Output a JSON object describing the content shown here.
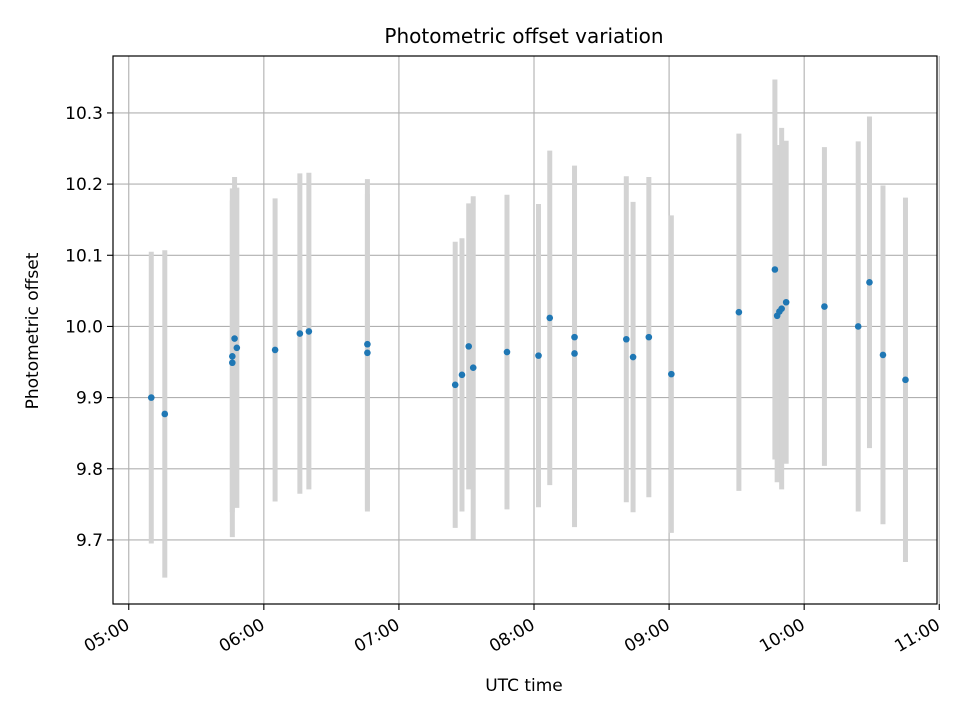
{
  "chart_data": {
    "type": "scatter",
    "title": "Photometric offset variation",
    "xlabel": "UTC time",
    "ylabel": "Photometric offset",
    "x_axis_kind": "time",
    "xlim": [
      "04:53",
      "10:59"
    ],
    "ylim": [
      9.61,
      10.38
    ],
    "x_ticks": [
      "05:00",
      "06:00",
      "07:00",
      "08:00",
      "09:00",
      "10:00",
      "11:00"
    ],
    "y_ticks": [
      9.7,
      9.8,
      9.9,
      10.0,
      10.1,
      10.2,
      10.3
    ],
    "y_tick_labels": [
      "9.7",
      "9.8",
      "9.9",
      "10.0",
      "10.1",
      "10.2",
      "10.3"
    ],
    "grid": true,
    "legend": "none",
    "colors": {
      "marker": "#1f77b4",
      "errorbar": "#d3d3d3",
      "grid": "#b0b0b0"
    },
    "points": [
      {
        "time": "05:10",
        "y": 9.9,
        "lo": 9.695,
        "hi": 10.105
      },
      {
        "time": "05:16",
        "y": 9.877,
        "lo": 9.647,
        "hi": 10.107
      },
      {
        "time": "05:46",
        "y": 9.949,
        "lo": 9.704,
        "hi": 10.194
      },
      {
        "time": "05:46",
        "y": 9.958,
        "lo": 9.739,
        "hi": 10.177
      },
      {
        "time": "05:47",
        "y": 9.983,
        "lo": 9.756,
        "hi": 10.21
      },
      {
        "time": "05:48",
        "y": 9.97,
        "lo": 9.745,
        "hi": 10.195
      },
      {
        "time": "06:05",
        "y": 9.967,
        "lo": 9.754,
        "hi": 10.18
      },
      {
        "time": "06:16",
        "y": 9.99,
        "lo": 9.765,
        "hi": 10.215
      },
      {
        "time": "06:20",
        "y": 9.993,
        "lo": 9.771,
        "hi": 10.216
      },
      {
        "time": "06:46",
        "y": 9.963,
        "lo": 9.74,
        "hi": 10.186
      },
      {
        "time": "06:46",
        "y": 9.975,
        "lo": 9.743,
        "hi": 10.207
      },
      {
        "time": "07:25",
        "y": 9.918,
        "lo": 9.717,
        "hi": 10.119
      },
      {
        "time": "07:28",
        "y": 9.932,
        "lo": 9.74,
        "hi": 10.124
      },
      {
        "time": "07:31",
        "y": 9.972,
        "lo": 9.771,
        "hi": 10.173
      },
      {
        "time": "07:33",
        "y": 9.942,
        "lo": 9.701,
        "hi": 10.183
      },
      {
        "time": "07:48",
        "y": 9.964,
        "lo": 9.743,
        "hi": 10.185
      },
      {
        "time": "08:02",
        "y": 9.959,
        "lo": 9.746,
        "hi": 10.172
      },
      {
        "time": "08:07",
        "y": 10.012,
        "lo": 9.777,
        "hi": 10.247
      },
      {
        "time": "08:18",
        "y": 9.985,
        "lo": 9.744,
        "hi": 10.226
      },
      {
        "time": "08:18",
        "y": 9.962,
        "lo": 9.718,
        "hi": 10.206
      },
      {
        "time": "08:41",
        "y": 9.982,
        "lo": 9.753,
        "hi": 10.211
      },
      {
        "time": "08:44",
        "y": 9.957,
        "lo": 9.739,
        "hi": 10.175
      },
      {
        "time": "08:51",
        "y": 9.985,
        "lo": 9.76,
        "hi": 10.21
      },
      {
        "time": "09:01",
        "y": 9.933,
        "lo": 9.71,
        "hi": 10.156
      },
      {
        "time": "09:31",
        "y": 10.02,
        "lo": 9.769,
        "hi": 10.271
      },
      {
        "time": "09:47",
        "y": 10.08,
        "lo": 9.813,
        "hi": 10.347
      },
      {
        "time": "09:48",
        "y": 10.015,
        "lo": 9.781,
        "hi": 10.249
      },
      {
        "time": "09:49",
        "y": 10.021,
        "lo": 9.787,
        "hi": 10.255
      },
      {
        "time": "09:50",
        "y": 10.025,
        "lo": 9.771,
        "hi": 10.279
      },
      {
        "time": "09:52",
        "y": 10.034,
        "lo": 9.807,
        "hi": 10.261
      },
      {
        "time": "10:09",
        "y": 10.028,
        "lo": 9.804,
        "hi": 10.252
      },
      {
        "time": "10:24",
        "y": 10.0,
        "lo": 9.74,
        "hi": 10.26
      },
      {
        "time": "10:29",
        "y": 10.062,
        "lo": 9.829,
        "hi": 10.295
      },
      {
        "time": "10:35",
        "y": 9.96,
        "lo": 9.722,
        "hi": 10.198
      },
      {
        "time": "10:45",
        "y": 9.925,
        "lo": 9.669,
        "hi": 10.181
      }
    ]
  }
}
